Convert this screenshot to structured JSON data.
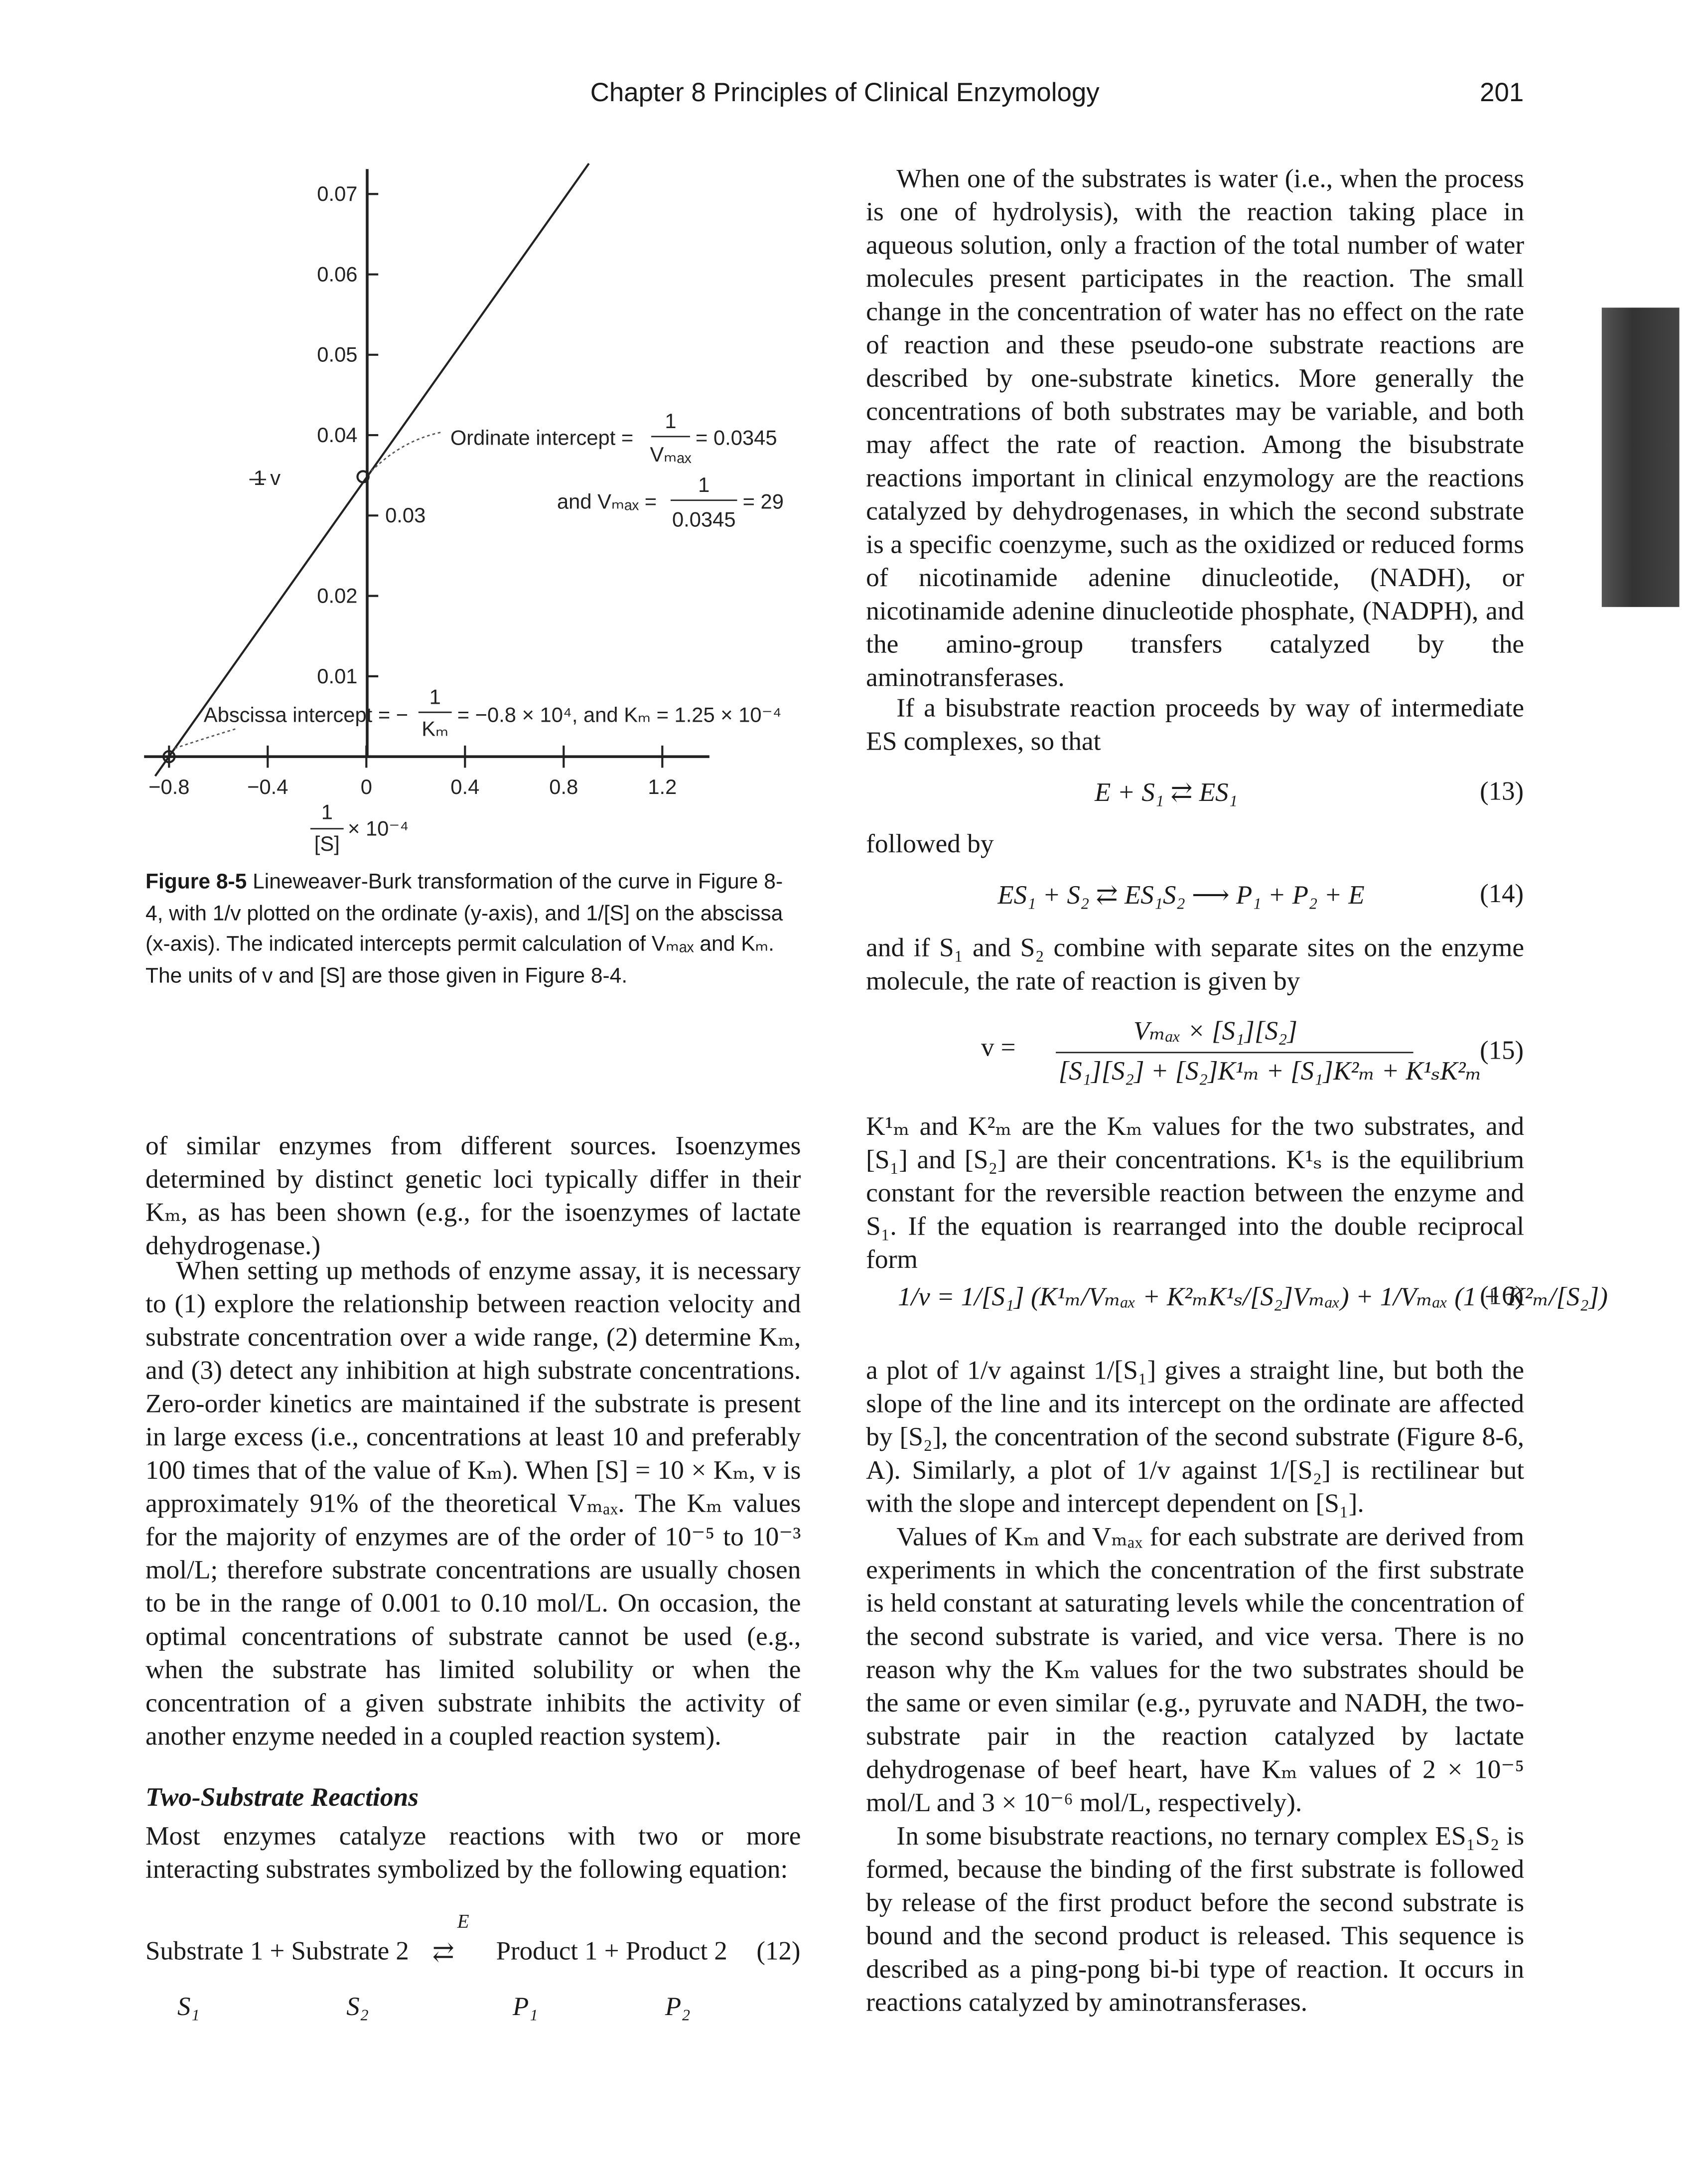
{
  "header": {
    "chapter": "Chapter 8  Principles of Clinical Enzymology",
    "page": "201"
  },
  "figure": {
    "y_tick_labels": [
      "0.07",
      "0.06",
      "0.05",
      "0.04",
      "0.03",
      "0.02",
      "0.01"
    ],
    "x_tick_labels": [
      "−0.8",
      "−0.4",
      "0",
      "0.4",
      "0.8",
      "1.2"
    ],
    "y_label_num": "1",
    "y_label_den": "v",
    "x_label_num": "1",
    "x_label_den": "[S]",
    "x_label_suffix": "× 10⁻⁴",
    "ordinate": {
      "text": "Ordinate intercept =",
      "num": "1",
      "den": "Vₘₐₓ",
      "result": "= 0.0345"
    },
    "vmax": {
      "text": "and Vₘₐₓ =",
      "num": "1",
      "den": "0.0345",
      "result": "= 29"
    },
    "abscissa": {
      "text": "Abscissa intercept = −",
      "num": "1",
      "den": "Kₘ",
      "result": "= −0.8 × 10⁴, and Kₘ = 1.25 × 10⁻⁴"
    }
  },
  "caption": {
    "label": "Figure 8-5",
    "text": "Lineweaver-Burk transformation of the curve in Figure 8-4, with 1/v plotted on the ordinate (y-axis), and 1/[S] on the abscissa (x-axis). The indicated intercepts permit calculation of Vₘₐₓ and Kₘ. The units of v and [S] are those given in Figure 8-4."
  },
  "left": {
    "p1": "of similar enzymes from different sources. Isoenzymes determined by distinct genetic loci typically differ in their Kₘ, as has been shown (e.g., for the isoenzymes of lactate dehydrogenase.)",
    "p2": "When setting up methods of enzyme assay, it is necessary to (1) explore the relationship between reaction velocity and substrate concentration over a wide range, (2) determine Kₘ, and (3) detect any inhibition at high substrate concentrations. Zero-order kinetics are maintained if the substrate is present in large excess (i.e., concentrations at least 10 and preferably 100 times that of the value of Kₘ). When [S] = 10 × Kₘ, v is approximately 91% of the theoretical Vₘₐₓ. The Kₘ values for the majority of enzymes are of the order of 10⁻⁵ to 10⁻³ mol/L; therefore substrate concentrations are usually chosen to be in the range of 0.001 to 0.10 mol/L. On occasion, the optimal concentrations of substrate cannot be used (e.g., when the substrate has limited solubility or when the concentration of a given substrate inhibits the activity of another enzyme needed in a coupled reaction system).",
    "heading": "Two-Substrate Reactions",
    "p3": "Most enzymes catalyze reactions with two or more interacting substrates symbolized by the following equation:",
    "eq12": {
      "lhs": "Substrate 1 + Substrate 2",
      "catalyst": "E",
      "arrow": "⇄",
      "rhs": "Product 1 + Product 2",
      "number": "(12)",
      "symbols": [
        "S₁",
        "S₂",
        "P₁",
        "P₂"
      ]
    }
  },
  "right": {
    "p1": "When one of the substrates is water (i.e., when the process is one of hydrolysis), with the reaction taking place in aqueous solution, only a fraction of the total number of water molecules present participates in the reaction. The small change in the concentration of water has no effect on the rate of reaction and these pseudo-one substrate reactions are described by one-substrate kinetics. More generally the concentrations of both substrates may be variable, and both may affect the rate of reaction. Among the bisubstrate reactions important in clinical enzymology are the reactions catalyzed by dehydrogenases, in which the second substrate is a specific coenzyme, such as the oxidized or reduced forms of nicotinamide adenine dinucleotide, (NADH), or nicotinamide adenine dinucleotide phosphate, (NADPH), and the amino-group transfers catalyzed by the aminotransferases.",
    "p2": "If a bisubstrate reaction proceeds by way of intermediate ES complexes, so that",
    "eq13": {
      "expr": "E + S₁ ⇄ ES₁",
      "number": "(13)"
    },
    "p3": "followed by",
    "eq14": {
      "expr": "ES₁ + S₂ ⇄ ES₁S₂ ⟶ P₁ + P₂ + E",
      "number": "(14)"
    },
    "p4": "and if S₁ and S₂ combine with separate sites on the enzyme molecule, the rate of reaction is given by",
    "eq15": {
      "lhs": "v =",
      "num": "Vₘₐₓ × [S₁][S₂]",
      "den": "[S₁][S₂] + [S₂]K¹ₘ + [S₁]K²ₘ + K¹ₛK²ₘ",
      "number": "(15)"
    },
    "p5": "K¹ₘ and K²ₘ are the Kₘ values for the two substrates, and [S₁] and [S₂] are their concentrations. K¹ₛ is the equilibrium constant for the reversible reaction between the enzyme and S₁. If the equation is rearranged into the double reciprocal form",
    "eq16": {
      "expr": "1/v = 1/[S₁] (K¹ₘ/Vₘₐₓ + K²ₘK¹ₛ/[S₂]Vₘₐₓ) + 1/Vₘₐₓ (1 + K²ₘ/[S₂])",
      "number": "(16)"
    },
    "p6": "a plot of 1/v against 1/[S₁] gives a straight line, but both the slope of the line and its intercept on the ordinate are affected by [S₂], the concentration of the second substrate (Figure 8-6, A). Similarly, a plot of 1/v against 1/[S₂] is rectilinear but with the slope and intercept dependent on [S₁].",
    "p7": "Values of Kₘ and Vₘₐₓ for each substrate are derived from experiments in which the concentration of the first substrate is held constant at saturating levels while the concentration of the second substrate is varied, and vice versa. There is no reason why the Kₘ values for the two substrates should be the same or even similar (e.g., pyruvate and NADH, the two-substrate pair in the reaction catalyzed by lactate dehydrogenase of beef heart, have Kₘ values of 2 × 10⁻⁵ mol/L and 3 × 10⁻⁶ mol/L, respectively).",
    "p8": "In some bisubstrate reactions, no ternary complex ES₁S₂ is formed, because the binding of the first substrate is followed by release of the first product before the second substrate is bound and the second product is released. This sequence is described as a ping-pong bi-bi type of reaction. It occurs in reactions catalyzed by aminotransferases."
  }
}
